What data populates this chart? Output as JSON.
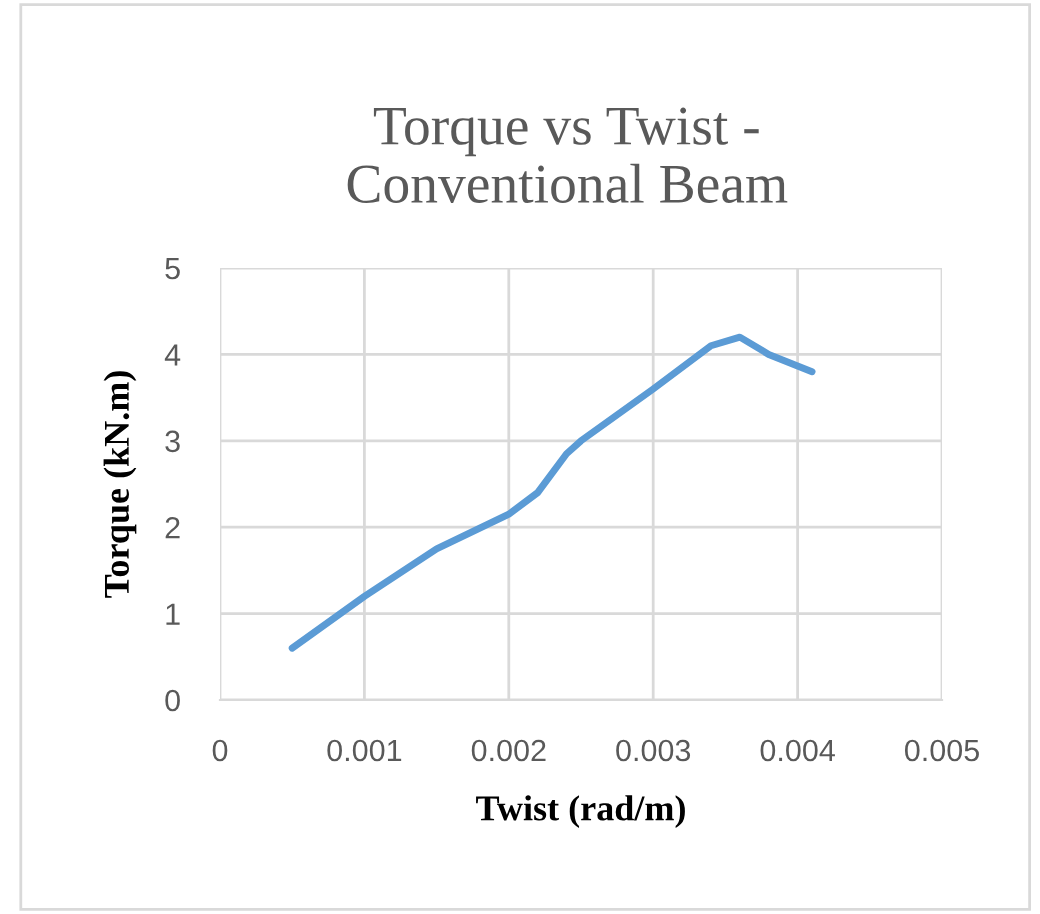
{
  "chart_data": {
    "type": "line",
    "title": "Torque vs Twist -\nConventional Beam",
    "xlabel": "Twist (rad/m)",
    "ylabel": "Torque (kN.m)",
    "x": [
      0.0005,
      0.001,
      0.0015,
      0.002,
      0.0022,
      0.0024,
      0.0025,
      0.003,
      0.0034,
      0.0036,
      0.0038,
      0.0041
    ],
    "series": [
      {
        "color": "#5b9bd5",
        "values": [
          0.6,
          1.2,
          1.75,
          2.15,
          2.4,
          2.85,
          3.0,
          3.6,
          4.1,
          4.2,
          4.0,
          3.8
        ]
      }
    ],
    "xlim": [
      0,
      0.005
    ],
    "xticks": [
      0,
      0.001,
      0.002,
      0.003,
      0.004,
      0.005
    ],
    "ylim": [
      0,
      5
    ],
    "yticks": [
      0,
      1,
      2,
      3,
      4,
      5
    ],
    "grid": true,
    "legend": false,
    "marker": "none",
    "line_style": "solid"
  }
}
